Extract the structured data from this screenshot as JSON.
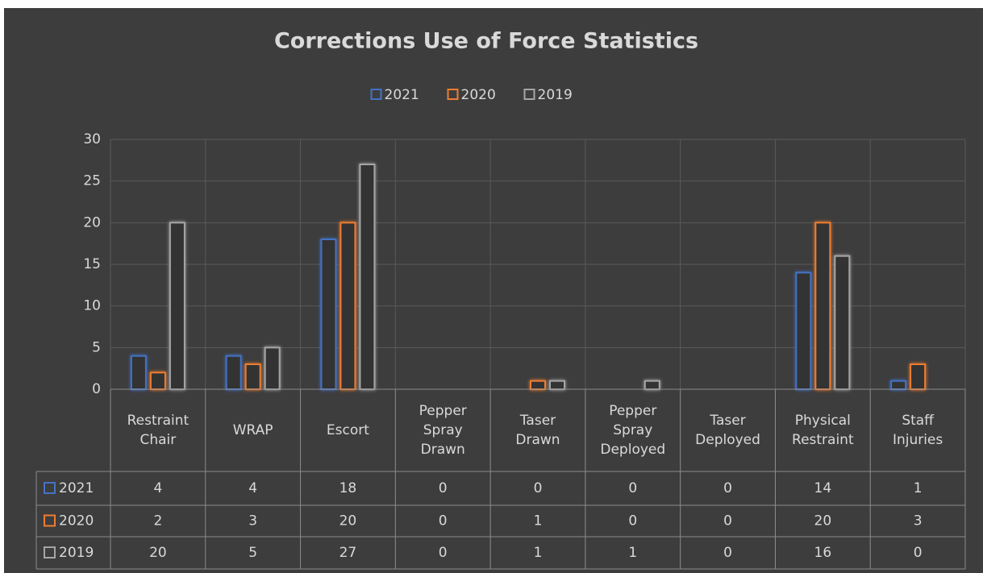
{
  "chart_data": {
    "type": "bar",
    "title": "Corrections Use of Force Statistics",
    "categories": [
      "Restraint Chair",
      "WRAP",
      "Escort",
      "Pepper Spray Drawn",
      "Taser Drawn",
      "Pepper Spray Deployed",
      "Taser Deployed",
      "Physical Restraint",
      "Staff Injuries"
    ],
    "series": [
      {
        "name": "2021",
        "color": "#4472c4",
        "values": [
          4,
          4,
          18,
          0,
          0,
          0,
          0,
          14,
          1
        ]
      },
      {
        "name": "2020",
        "color": "#ed7d31",
        "values": [
          2,
          3,
          20,
          0,
          1,
          0,
          0,
          20,
          3
        ]
      },
      {
        "name": "2019",
        "color": "#a5a5a5",
        "values": [
          20,
          5,
          27,
          0,
          1,
          1,
          0,
          16,
          0
        ]
      }
    ],
    "ylim": [
      0,
      30
    ],
    "yticks": [
      0,
      5,
      10,
      15,
      20,
      25,
      30
    ],
    "grid": true,
    "legend": "top",
    "data_table": true
  }
}
